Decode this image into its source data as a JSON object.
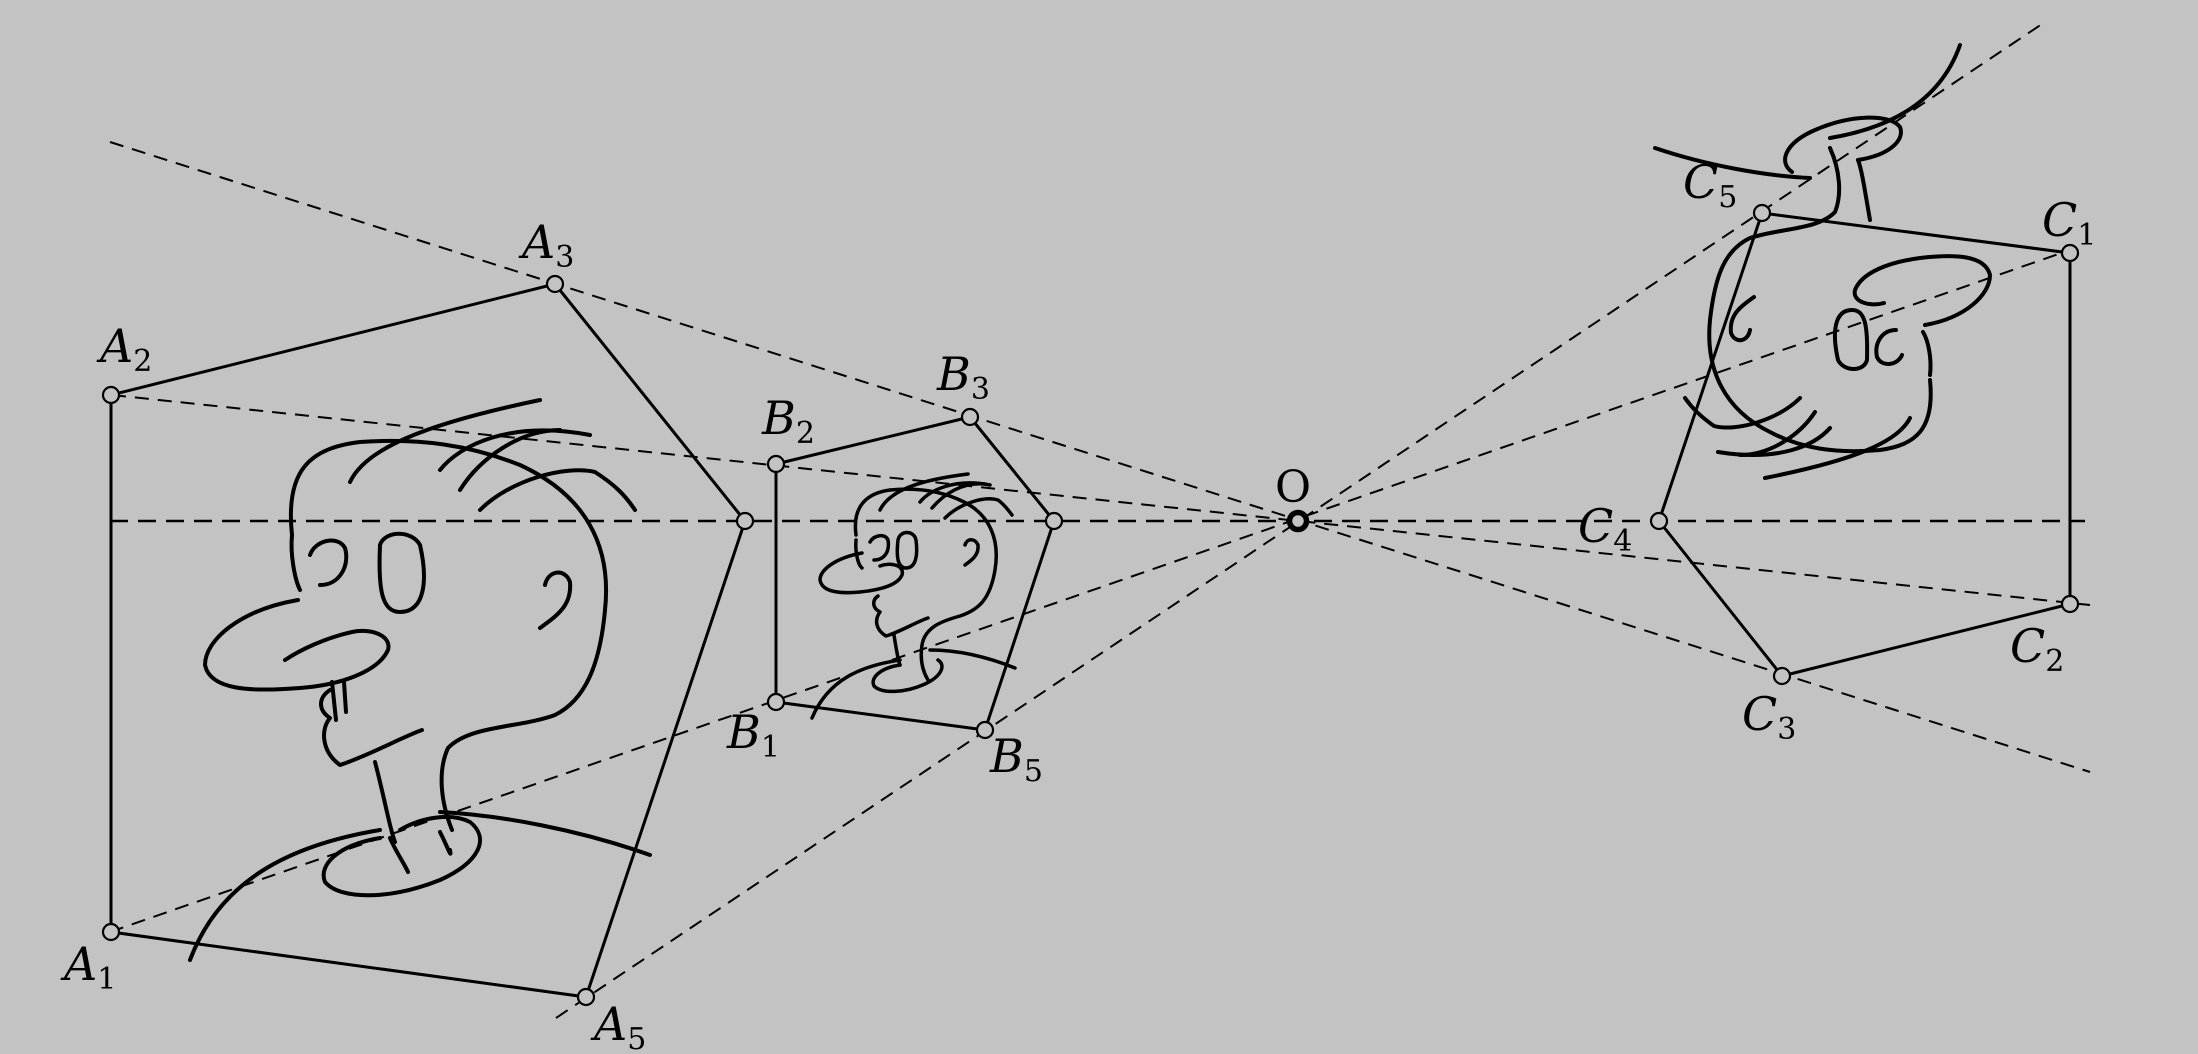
{
  "figure": {
    "center_label": "O",
    "figure_a": {
      "points": [
        {
          "letter": "A",
          "index": "1"
        },
        {
          "letter": "A",
          "index": "2"
        },
        {
          "letter": "A",
          "index": "3"
        },
        {
          "letter": "A",
          "index": "5"
        }
      ]
    },
    "figure_b": {
      "points": [
        {
          "letter": "B",
          "index": "1"
        },
        {
          "letter": "B",
          "index": "2"
        },
        {
          "letter": "B",
          "index": "3"
        },
        {
          "letter": "B",
          "index": "5"
        }
      ]
    },
    "figure_c": {
      "points": [
        {
          "letter": "C",
          "index": "1"
        },
        {
          "letter": "C",
          "index": "2"
        },
        {
          "letter": "C",
          "index": "3"
        },
        {
          "letter": "C",
          "index": "4"
        },
        {
          "letter": "C",
          "index": "5"
        }
      ]
    }
  },
  "colors": {
    "background": "#c3c3c3",
    "ink": "#000000"
  }
}
